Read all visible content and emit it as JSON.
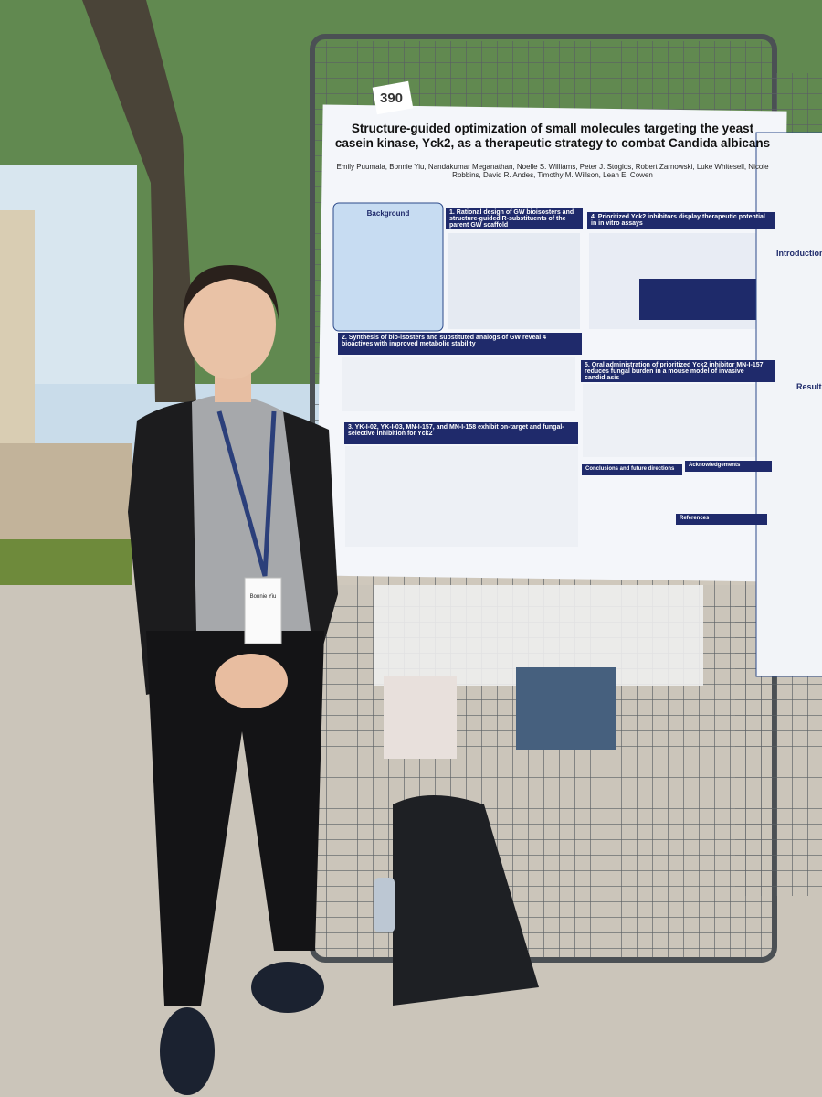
{
  "poster": {
    "board_number": "390",
    "title": "Structure-guided optimization of small molecules targeting the yeast casein kinase, Yck2, as a therapeutic strategy to combat Candida albicans",
    "authors": "Emily Puumala, Bonnie Yiu, Nandakumar Meganathan, Noelle S. Williams, Peter J. Stogios, Robert Zarnowski, Luke Whitesell, Nicole Robbins, David R. Andes, Timothy M. Willson, Leah E. Cowen",
    "sections": [
      "Background",
      "1. Rational design of GW bioisosters and structure-guided R-substituents of the parent GW scaffold",
      "4. Prioritized Yck2 inhibitors display therapeutic potential in in vitro assays",
      "2. Synthesis of bio-isosters and substituted analogs of GW reveal 4 bioactives with improved metabolic stability",
      "5. Oral administration of prioritized Yck2 inhibitor MN-I-157 reduces fungal burden in a mouse model of invasive candidiasis",
      "3. YK-I-02, YK-I-03, MN-I-157, and MN-I-158 exhibit on-target and fungal-selective inhibition for Yck2",
      "Conclusions and future directions",
      "Acknowledgements",
      "References"
    ]
  },
  "neighbor_poster": {
    "sections": [
      "Introduction",
      "Results"
    ]
  },
  "badge": {
    "name": "Bonnie Yiu"
  }
}
